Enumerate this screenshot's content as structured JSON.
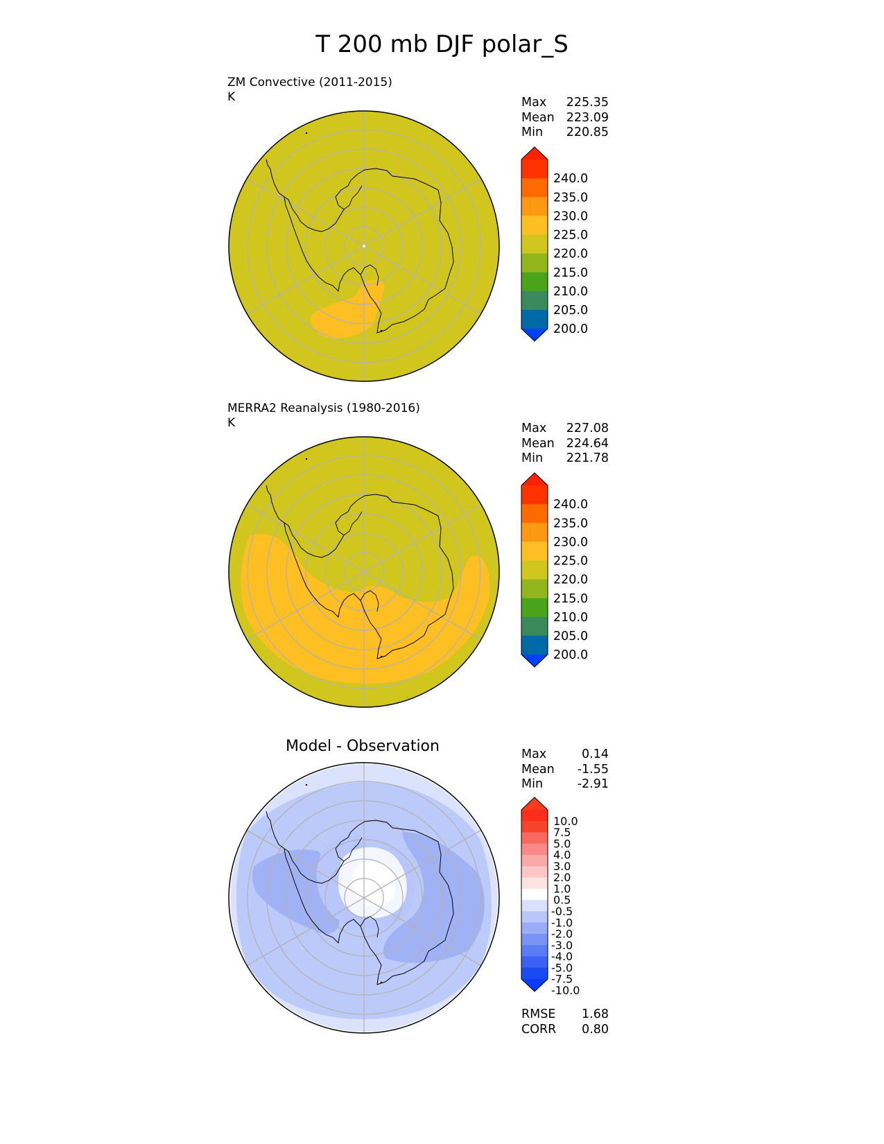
{
  "title": "T 200 mb DJF polar_S",
  "colors": {
    "base_field": "#d0c61e",
    "warm_field": "#fdbf21",
    "coast": "#000000",
    "grid": "#b3b3b3"
  },
  "panels": [
    {
      "name": "test",
      "label": "ZM Convective (2011-2015)",
      "units": "K",
      "stats": [
        {
          "name": "Max",
          "value": "225.35"
        },
        {
          "name": "Mean",
          "value": "223.09"
        },
        {
          "name": "Min",
          "value": "220.85"
        }
      ]
    },
    {
      "name": "reference",
      "label": "MERRA2 Reanalysis (1980-2016)",
      "units": "K",
      "stats": [
        {
          "name": "Max",
          "value": "227.08"
        },
        {
          "name": "Mean",
          "value": "224.64"
        },
        {
          "name": "Min",
          "value": "221.78"
        }
      ]
    },
    {
      "name": "difference",
      "label": "Model - Observation",
      "units": "",
      "stats": [
        {
          "name": "Max",
          "value": "0.14"
        },
        {
          "name": "Mean",
          "value": "-1.55"
        },
        {
          "name": "Min",
          "value": "-2.91"
        }
      ],
      "metrics": [
        {
          "name": "RMSE",
          "value": "1.68"
        },
        {
          "name": "CORR",
          "value": "0.80"
        }
      ]
    }
  ],
  "chart_data": [
    {
      "type": "heatmap",
      "projection": "south-polar-stereographic",
      "title": "ZM Convective (2011-2015)",
      "units": "K",
      "colorbar": {
        "ticks": [
          "240.0",
          "235.0",
          "230.0",
          "225.0",
          "220.0",
          "215.0",
          "210.0",
          "205.0",
          "200.0"
        ],
        "levels": [
          200,
          205,
          210,
          215,
          220,
          225,
          230,
          235,
          240
        ],
        "colors": [
          "#0040ff",
          "#0069a8",
          "#3a8a5c",
          "#4aa41a",
          "#92b71c",
          "#d0c61e",
          "#fdbf21",
          "#ff9912",
          "#ff6a00",
          "#ff3300",
          "#ff2200"
        ],
        "extend": "both"
      },
      "field": {
        "background_band": "220.0-225.0",
        "warm_patch_band": "225.0-230.0",
        "warm_patch_location": "Ross Sea / Pacific sector"
      }
    },
    {
      "type": "heatmap",
      "projection": "south-polar-stereographic",
      "title": "MERRA2 Reanalysis (1980-2016)",
      "units": "K",
      "colorbar": {
        "ticks": [
          "240.0",
          "235.0",
          "230.0",
          "225.0",
          "220.0",
          "215.0",
          "210.0",
          "205.0",
          "200.0"
        ],
        "levels": [
          200,
          205,
          210,
          215,
          220,
          225,
          230,
          235,
          240
        ],
        "colors": [
          "#0040ff",
          "#0069a8",
          "#3a8a5c",
          "#4aa41a",
          "#92b71c",
          "#d0c61e",
          "#fdbf21",
          "#ff9912",
          "#ff6a00",
          "#ff3300",
          "#ff2200"
        ],
        "extend": "both"
      },
      "field": {
        "background_band": "220.0-225.0",
        "warm_ring_band": "225.0-230.0",
        "warm_ring_location": "mid-latitude ring surrounding Antarctica"
      }
    },
    {
      "type": "heatmap",
      "projection": "south-polar-stereographic",
      "title": "Model - Observation",
      "colorbar": {
        "ticks": [
          "10.0",
          "7.5",
          "5.0",
          "4.0",
          "3.0",
          "2.0",
          "1.0",
          "0.5",
          "-0.5",
          "-1.0",
          "-2.0",
          "-3.0",
          "-4.0",
          "-5.0",
          "-7.5",
          "-10.0"
        ],
        "levels": [
          -10,
          -7.5,
          -5,
          -4,
          -3,
          -2,
          -1,
          -0.5,
          0.5,
          1,
          2,
          3,
          4,
          5,
          7.5,
          10
        ],
        "colors": [
          "#0a3cff",
          "#1a4af4",
          "#3a62f4",
          "#5a7cf5",
          "#7a94f6",
          "#9aacf8",
          "#b8c6fa",
          "#d8e0fc",
          "#ffffff",
          "#fde2e2",
          "#fcc6c6",
          "#fba8a8",
          "#fa8a8a",
          "#f86a5e",
          "#f6442a",
          "#fa2e1a",
          "#ff3a1e"
        ],
        "extend": "both"
      },
      "field": {
        "near_zero_region": "over East Antarctica near the pole (-0.5 to 0.5)",
        "coolest_regions": "Weddell Sea and south of Australia (-3.0 to -2.0)"
      }
    }
  ]
}
